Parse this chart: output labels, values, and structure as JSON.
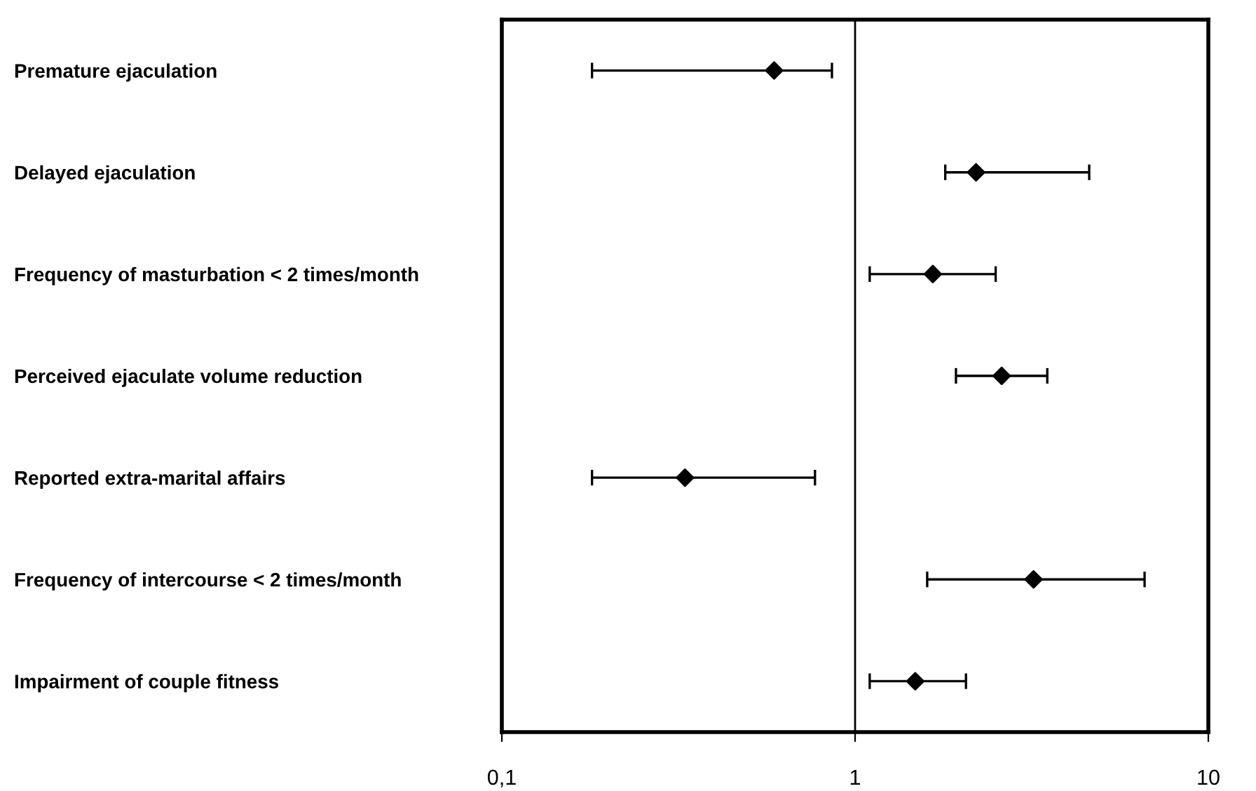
{
  "chart_data": {
    "type": "scatter",
    "orientation": "horizontal",
    "categories": [
      "Premature ejaculation",
      "Delayed ejaculation",
      "Frequency of masturbation < 2 times/month",
      "Perceived ejaculate volume reduction",
      "Reported extra-marital affairs",
      "Frequency of intercourse < 2 times/month",
      "Impairment of couple fitness"
    ],
    "series": [
      {
        "color": "#000000",
        "values": [
          0.59,
          2.2,
          1.66,
          2.6,
          0.33,
          3.2,
          1.48
        ],
        "errors": [
          [
            0.18,
            0.86
          ],
          [
            1.8,
            4.6
          ],
          [
            1.1,
            2.5
          ],
          [
            1.93,
            3.5
          ],
          [
            0.18,
            0.77
          ],
          [
            1.6,
            6.6
          ],
          [
            1.1,
            2.06
          ]
        ]
      }
    ],
    "log": "x",
    "xlim": [
      0.1,
      10
    ],
    "xticks": [
      {
        "value": 0.1,
        "label": "0,1"
      },
      {
        "value": 1,
        "label": "1"
      },
      {
        "value": 10,
        "label": "10"
      }
    ],
    "ref_lines": [
      {
        "axis": "x",
        "value": 1,
        "color": "#000000"
      }
    ],
    "marker": "diamond",
    "grid": false,
    "legend": false
  }
}
